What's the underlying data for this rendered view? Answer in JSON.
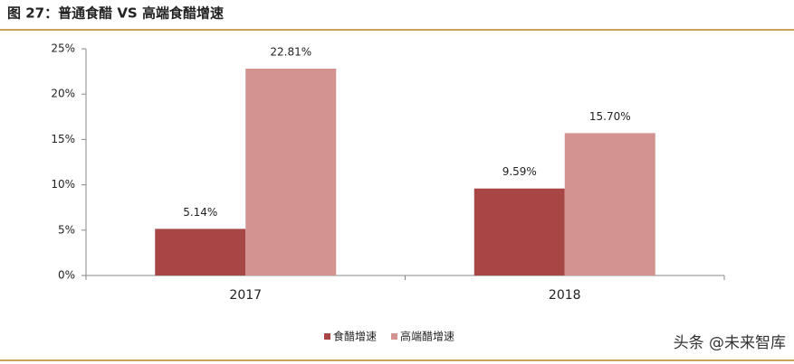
{
  "chart_data": {
    "type": "bar",
    "title": "图 27：普通食醋 VS 高端食醋增速",
    "categories": [
      "2017",
      "2018"
    ],
    "series": [
      {
        "name": "食醋增速",
        "color": "#a84646",
        "values": [
          5.14,
          9.59
        ],
        "value_labels": [
          "5.14%",
          "9.59%"
        ]
      },
      {
        "name": "高端醋增速",
        "color": "#d39391",
        "values": [
          22.81,
          15.7
        ],
        "value_labels": [
          "22.81%",
          "15.70%"
        ]
      }
    ],
    "ylim": [
      0,
      25
    ],
    "yticks": [
      {
        "value": 0,
        "label": "0%"
      },
      {
        "value": 5,
        "label": "5%"
      },
      {
        "value": 10,
        "label": "10%"
      },
      {
        "value": 15,
        "label": "15%"
      },
      {
        "value": 20,
        "label": "20%"
      },
      {
        "value": 25,
        "label": "25%"
      }
    ],
    "grid": false,
    "legend": "bottom",
    "watermark": "头条 @未来智库"
  }
}
